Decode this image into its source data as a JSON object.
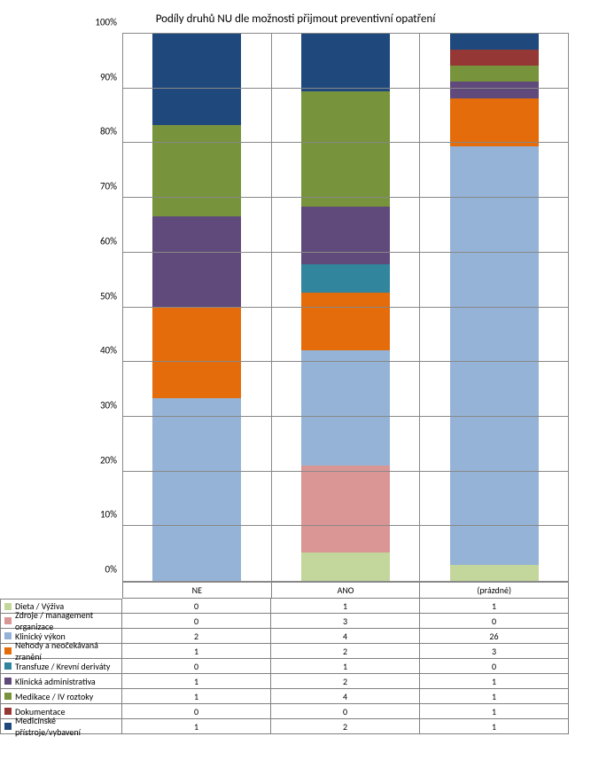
{
  "chart": {
    "type": "bar-stacked-100",
    "title": "Podíly druhů NU dle možnosti přijmout preventivní opatření",
    "title_fontsize": 13,
    "background_color": "#ffffff",
    "grid_color": "#888888",
    "label_fontsize": 10,
    "ylim": [
      0,
      100
    ],
    "ytick_step": 10,
    "yticks": [
      "0%",
      "10%",
      "20%",
      "30%",
      "40%",
      "50%",
      "60%",
      "70%",
      "80%",
      "90%",
      "100%"
    ],
    "categories": [
      "NE",
      "ANO",
      "(prázdné)"
    ],
    "bar_width": 0.6,
    "series": [
      {
        "name": "Dieta / Výživa",
        "color": "#c3d69b",
        "values": [
          0,
          1,
          1
        ]
      },
      {
        "name": "Zdroje / management organizace",
        "color": "#d99694",
        "values": [
          0,
          3,
          0
        ]
      },
      {
        "name": "Klinický výkon",
        "color": "#95b3d7",
        "values": [
          2,
          4,
          26
        ]
      },
      {
        "name": "Nehody a neočekávaná zranění",
        "color": "#e46c0a",
        "values": [
          1,
          2,
          3
        ]
      },
      {
        "name": "Transfuze / Krevní deriváty",
        "color": "#31859c",
        "values": [
          0,
          1,
          0
        ]
      },
      {
        "name": "Klinická administrativa",
        "color": "#604a7b",
        "values": [
          1,
          2,
          1
        ]
      },
      {
        "name": "Medikace / IV roztoky",
        "color": "#77933c",
        "values": [
          1,
          4,
          1
        ]
      },
      {
        "name": "Dokumentace",
        "color": "#953735",
        "values": [
          0,
          0,
          1
        ]
      },
      {
        "name": "Medicínské přístroje/vybavení",
        "color": "#1f497d",
        "values": [
          1,
          2,
          1
        ]
      }
    ]
  }
}
